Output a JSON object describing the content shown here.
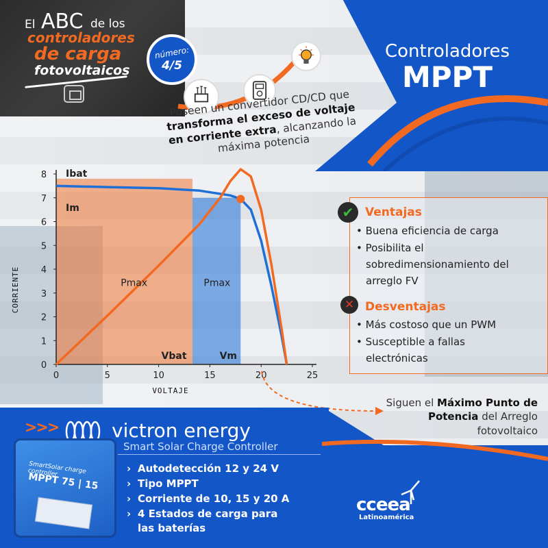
{
  "header": {
    "line_el": "El",
    "line_abc": "ABC",
    "line_delos": "de los",
    "line_controladores": "controladores",
    "line_decarga": "de carga",
    "line_fotovoltaicos": "fotovoltaicos",
    "badge_label": "número:",
    "badge_number": "4/5"
  },
  "right_title": {
    "line1": "Controladores",
    "line2": "MPPT"
  },
  "description": {
    "part1": "Poseen un convertidor CD/CD que ",
    "bold": "transforma el exceso de voltaje en corriente extra",
    "part2": ", alcanzando la máxima potencia"
  },
  "chart_data": {
    "type": "line",
    "xlabel": "VOLTAJE",
    "ylabel": "CORRIENTE",
    "xlim": [
      0,
      25
    ],
    "ylim": [
      0,
      8
    ],
    "x_ticks": [
      "0",
      "5",
      "10",
      "15",
      "20",
      "25"
    ],
    "y_ticks": [
      "0",
      "1",
      "2",
      "3",
      "4",
      "5",
      "6",
      "7",
      "8"
    ],
    "series": [
      {
        "color": "#1e6fd6",
        "x": [
          0,
          5,
          10,
          14,
          17,
          18,
          19,
          20,
          21,
          22,
          22.5
        ],
        "y": [
          7.5,
          7.45,
          7.4,
          7.3,
          7.1,
          6.95,
          6.5,
          5.2,
          3.3,
          1.2,
          0
        ]
      },
      {
        "color": "#f26a21",
        "x": [
          0,
          5,
          10,
          14,
          16,
          17,
          18,
          19,
          20,
          21,
          22,
          22.5
        ],
        "y": [
          0,
          2.05,
          4.15,
          5.9,
          7.0,
          7.7,
          8.2,
          7.9,
          6.5,
          4.2,
          1.5,
          0
        ]
      }
    ],
    "annotations": {
      "ibat": "Ibat",
      "im": "Im",
      "pmax_left": "Pmax",
      "pmax_right": "Pmax",
      "vbat": "Vbat",
      "vm": "Vm"
    },
    "rect_vbat": {
      "v": 13.3,
      "i": 7.8
    },
    "rect_vm": {
      "v": 18,
      "i": 7.0
    },
    "mpp_point": {
      "v": 18,
      "i": 6.95
    }
  },
  "advantages": {
    "title": "Ventajas",
    "items": [
      "Buena eficiencia de carga",
      "Posibilita el",
      "sobredimensionamiento del",
      "arreglo FV"
    ]
  },
  "disadvantages": {
    "title": "Desventajas",
    "items": [
      "Más costoso que un PWM",
      "Susceptible a fallas",
      "electrónicas"
    ]
  },
  "follow_note": {
    "part1": "Siguen el ",
    "bold": "Máximo Punto de Potencia",
    "part2": " del Arreglo fotovoltaico"
  },
  "product": {
    "chevrons": ">>>",
    "brand": "victron energy",
    "subtitle": "Smart Solar Charge Controller",
    "device_line1": "SmartSolar charge controller",
    "device_line2": "MPPT 75 | 15",
    "features": [
      "Autodetección 12 y 24 V",
      "Tipo MPPT",
      "Corriente de 10, 15 y 20 A",
      "4 Estados de carga para",
      "las baterías"
    ]
  },
  "footer_logo": {
    "name": "cceea",
    "sub": "Latinoamérica"
  },
  "colors": {
    "brand_blue": "#1356c8",
    "brand_orange": "#f26a21",
    "dark": "#2c2c2c"
  }
}
